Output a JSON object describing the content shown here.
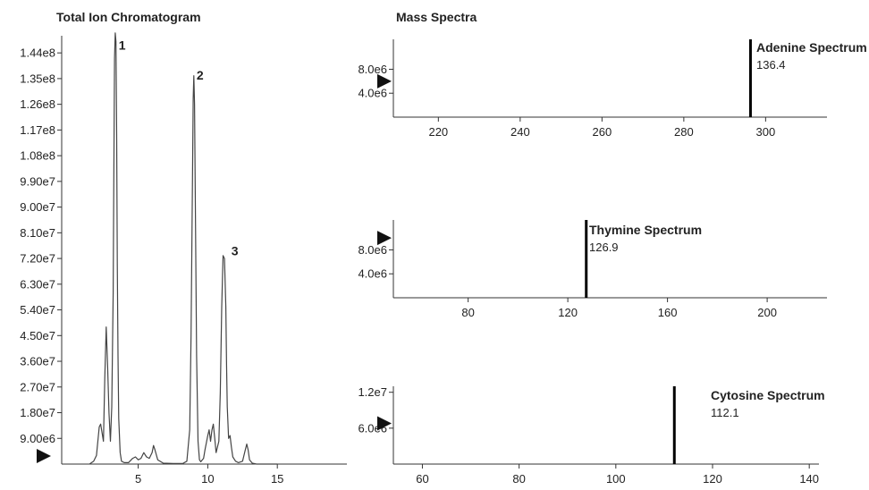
{
  "colors": {
    "line": "#444444",
    "axis": "#333333",
    "stick": "#000000",
    "marker": "#111111"
  },
  "chart_data": [
    {
      "type": "line",
      "title": "Total Ion Chromatogram",
      "xlabel": "",
      "ylabel": "",
      "x_ticks": [
        5,
        10,
        15
      ],
      "y_tick_labels": [
        "9.00e6",
        "1.80e7",
        "2.70e7",
        "3.60e7",
        "4.50e7",
        "5.40e7",
        "6.30e7",
        "7.20e7",
        "8.10e7",
        "9.00e7",
        "9.90e7",
        "1.08e8",
        "1.17e8",
        "1.26e8",
        "1.35e8",
        "1.44e8"
      ],
      "xlim": [
        -0.5,
        20
      ],
      "ylim": [
        0,
        150000000
      ],
      "baseline_marker": 0,
      "peak_labels": [
        {
          "label": "1",
          "x": 3.4,
          "y": 147000000
        },
        {
          "label": "2",
          "x": 9.0,
          "y": 136500000
        },
        {
          "label": "3",
          "x": 11.5,
          "y": 75000000
        }
      ],
      "series": [
        {
          "x": [
            1.5,
            1.8,
            2.0,
            2.2,
            2.3,
            2.5,
            2.6,
            2.7,
            2.8,
            2.9,
            3.0,
            3.1,
            3.2,
            3.25,
            3.3,
            3.35,
            3.4,
            3.45,
            3.5,
            3.55,
            3.6,
            3.7,
            3.8,
            4.0,
            4.3,
            4.6,
            4.8,
            5.0,
            5.2,
            5.4,
            5.6,
            5.8,
            6.0,
            6.1,
            6.2,
            6.4,
            6.8,
            7.5,
            8.2,
            8.5,
            8.7,
            8.8,
            8.9,
            8.95,
            9.0,
            9.05,
            9.1,
            9.2,
            9.3,
            9.4,
            9.5,
            9.7,
            9.8,
            10.0,
            10.1,
            10.2,
            10.3,
            10.4,
            10.5,
            10.6,
            10.8,
            10.9,
            11.0,
            11.1,
            11.2,
            11.3,
            11.35,
            11.4,
            11.5,
            11.6,
            11.7,
            11.8,
            12.0,
            12.2,
            12.5,
            12.7,
            12.8,
            12.9,
            13.0,
            13.2,
            13.5,
            14.0,
            15.0
          ],
          "values": [
            0,
            1000000,
            3000000,
            13000000,
            14000000,
            8000000,
            30000000,
            48000000,
            34000000,
            18000000,
            8000000,
            20000000,
            60000000,
            105000000,
            142000000,
            151000000,
            148000000,
            115000000,
            70000000,
            38000000,
            16000000,
            4000000,
            1000000,
            500000,
            500000,
            2000000,
            2500000,
            1500000,
            2000000,
            4000000,
            2500000,
            2000000,
            4000000,
            6500000,
            5000000,
            1500000,
            300000,
            200000,
            200000,
            1000000,
            12000000,
            45000000,
            100000000,
            128000000,
            136000000,
            126000000,
            95000000,
            38000000,
            8000000,
            1500000,
            800000,
            2000000,
            5000000,
            10000000,
            12000000,
            8000000,
            12000000,
            14000000,
            9000000,
            4000000,
            8000000,
            25000000,
            55000000,
            73000000,
            72000000,
            55000000,
            35000000,
            20000000,
            9000000,
            10000000,
            6000000,
            2500000,
            1000000,
            500000,
            1000000,
            5000000,
            7000000,
            5000000,
            1500000,
            300000,
            0,
            0,
            0
          ]
        }
      ]
    },
    {
      "type": "bar",
      "title": "Mass Spectra",
      "panel": "Adenine Spectrum",
      "value_label": "136.4",
      "x_ticks": [
        220,
        240,
        260,
        280,
        300
      ],
      "y_tick_labels": [
        "4.0e6",
        "8.0e6"
      ],
      "xlim": [
        209,
        315
      ],
      "ylim": [
        0,
        13000000
      ],
      "baseline_marker": 6000000,
      "sticks": [
        {
          "x": 296.3,
          "value": 13000000
        }
      ]
    },
    {
      "type": "bar",
      "panel": "Thymine Spectrum",
      "value_label": "126.9",
      "x_ticks": [
        80,
        120,
        160,
        200
      ],
      "y_tick_labels": [
        "4.0e6",
        "8.0e6"
      ],
      "xlim": [
        50,
        224
      ],
      "ylim": [
        0,
        13000000
      ],
      "baseline_marker": 10000000,
      "sticks": [
        {
          "x": 127.4,
          "value": 13000000
        }
      ]
    },
    {
      "type": "bar",
      "panel": "Cytosine Spectrum",
      "value_label": "112.1",
      "x_ticks": [
        60,
        80,
        100,
        120,
        140
      ],
      "y_tick_labels": [
        "6.0e6",
        "1.2e7"
      ],
      "xlim": [
        54,
        142
      ],
      "ylim": [
        0,
        13000000
      ],
      "baseline_marker": 6800000,
      "sticks": [
        {
          "x": 112.1,
          "value": 13000000
        }
      ]
    }
  ]
}
